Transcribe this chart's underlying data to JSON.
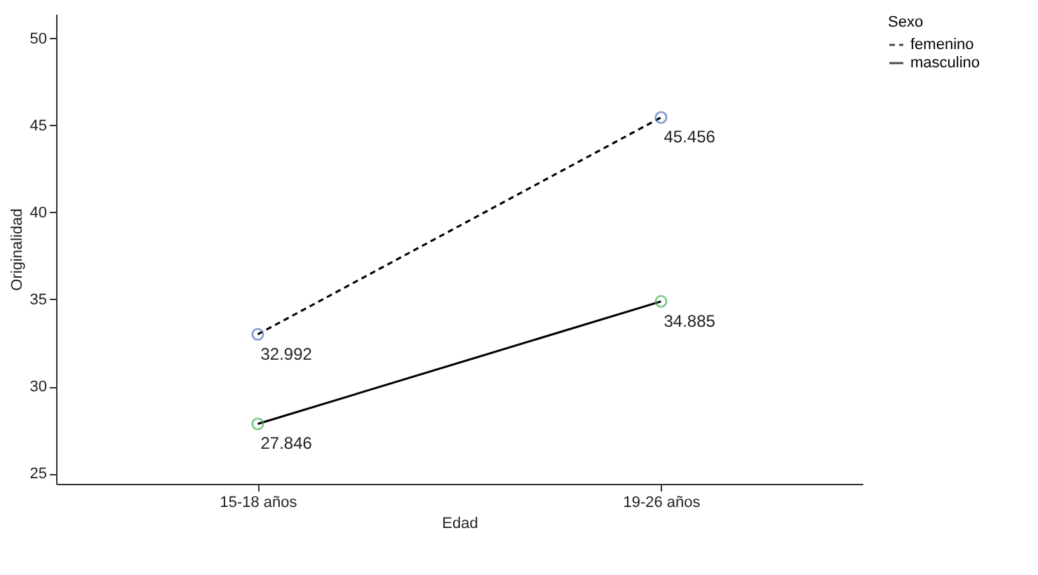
{
  "chart_data": {
    "type": "line",
    "xlabel": "Edad",
    "ylabel": "Originalidad",
    "legend_title": "Sexo",
    "categories": [
      "15-18 años",
      "19-26 años"
    ],
    "series": [
      {
        "name": "femenino",
        "color": "#000000",
        "colors": [
          "#4a6fbf",
          "#4a6fbf"
        ],
        "line_style": "dashed",
        "values": [
          32.992,
          45.456
        ]
      },
      {
        "name": "masculino",
        "color": "#000000",
        "colors": [
          "#3fb44f",
          "#3fb44f"
        ],
        "line_style": "solid",
        "values": [
          27.846,
          34.885
        ]
      }
    ],
    "ylim": [
      24.4,
      51.4
    ],
    "yticks": [
      25,
      30,
      35,
      40,
      45,
      50
    ],
    "grid": false,
    "legend": "top right",
    "marker": "circle",
    "data_labels": true
  }
}
